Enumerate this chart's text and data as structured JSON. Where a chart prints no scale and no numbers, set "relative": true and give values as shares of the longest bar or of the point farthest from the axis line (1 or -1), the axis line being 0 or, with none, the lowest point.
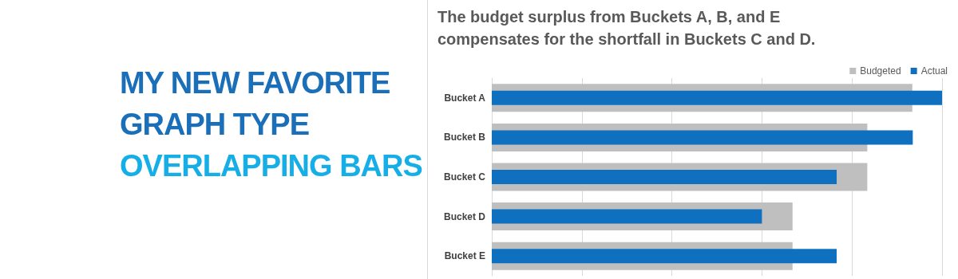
{
  "chart_data": {
    "type": "bar",
    "orientation": "horizontal",
    "relative": true,
    "title": "The budget surplus from Buckets A, B, and E compensates for the shortfall in Buckets C and D.",
    "annotations": [
      "MY NEW FAVORITE GRAPH TYPE",
      "OVERLAPPING BARS"
    ],
    "categories": [
      "Bucket A",
      "Bucket B",
      "Bucket C",
      "Bucket D",
      "Bucket E"
    ],
    "series": [
      {
        "name": "Budgeted",
        "color": "#bfbfbf",
        "values": [
          0.934,
          0.834,
          0.834,
          0.668,
          0.668
        ]
      },
      {
        "name": "Actual",
        "color": "#1070c0",
        "values": [
          1,
          0.935,
          0.766,
          0.6,
          0.766
        ]
      }
    ],
    "grid": "x",
    "legend": "top right"
  }
}
